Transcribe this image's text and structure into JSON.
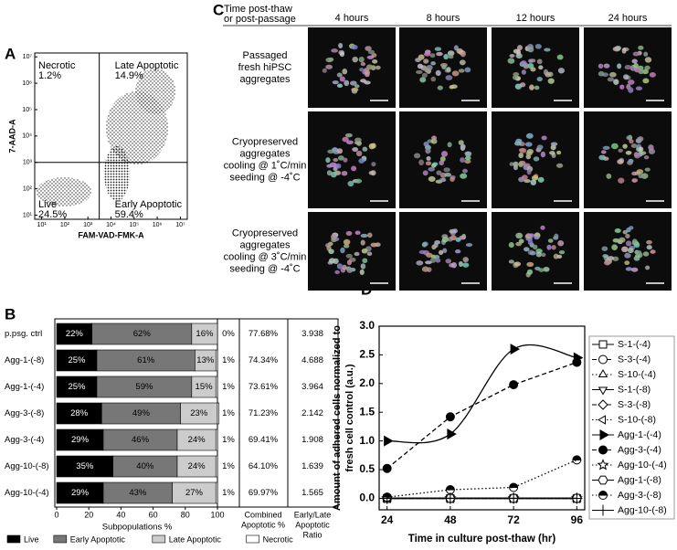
{
  "panel_labels": [
    "A",
    "B",
    "C",
    "D"
  ],
  "chart_data": [
    {
      "type": "flow-cytometry",
      "xlabel": "FAM-VAD-FMK-A",
      "ylabel": "7-AAD-A",
      "log_scale": true,
      "xlim": [
        5,
        20000000
      ],
      "ylim": [
        7,
        14000000
      ],
      "xticks": [
        {
          "value": 10,
          "label": "10¹"
        },
        {
          "value": 100,
          "label": "10²"
        },
        {
          "value": 1000,
          "label": "10³"
        },
        {
          "value": 10000,
          "label": "10⁴"
        },
        {
          "value": 100000,
          "label": "10⁵"
        },
        {
          "value": 1000000,
          "label": "10⁶"
        },
        {
          "value": 10000000,
          "label": "10⁷"
        }
      ],
      "yticks": [
        {
          "value": 10,
          "label": "10¹"
        },
        {
          "value": 100,
          "label": "10²"
        },
        {
          "value": 1000,
          "label": "10³"
        },
        {
          "value": 10000,
          "label": "10⁴"
        },
        {
          "value": 100000,
          "label": "10⁵"
        },
        {
          "value": 1000000,
          "label": "10⁶"
        },
        {
          "value": 10000000,
          "label": "10⁷"
        }
      ],
      "gates": {
        "x": 3100,
        "y": 1000
      },
      "quadrants": [
        {
          "name": "Necrotic",
          "value": 1.2,
          "value_label": "1.2%"
        },
        {
          "name": "Late Apoptotic",
          "value": 14.9,
          "value_label": "14.9%"
        },
        {
          "name": "Live",
          "value": 24.5,
          "value_label": "24.5%"
        },
        {
          "name": "Early Apoptotic",
          "value": 59.4,
          "value_label": "59.4%"
        }
      ]
    },
    {
      "type": "stacked-barh",
      "xlabel": "Subpopulations %",
      "categories": [
        "p.psg. ctrl",
        "Agg-1-(-8)",
        "Agg-1-(-4)",
        "Agg-3-(-8)",
        "Agg-3-(-4)",
        "Agg-10-(-8)",
        "Agg-10-(-4)"
      ],
      "xlim": [
        0,
        100
      ],
      "xticks": [
        0,
        20,
        40,
        60,
        80,
        100
      ],
      "series": [
        {
          "name": "Live",
          "color": "#000000",
          "values": [
            22,
            25,
            25,
            28,
            29,
            35,
            29
          ],
          "value_labels": [
            "22%",
            "25%",
            "25%",
            "28%",
            "29%",
            "35%",
            "29%"
          ]
        },
        {
          "name": "Early Apoptotic",
          "color": "#777777",
          "values": [
            62,
            61,
            59,
            49,
            46,
            40,
            43
          ],
          "value_labels": [
            "62%",
            "61%",
            "59%",
            "49%",
            "46%",
            "40%",
            "43%"
          ]
        },
        {
          "name": "Late Apoptotic",
          "color": "#cccccc",
          "values": [
            16,
            13,
            15,
            23,
            24,
            24,
            27
          ],
          "value_labels": [
            "16%",
            "13%",
            "15%",
            "23%",
            "24%",
            "24%",
            "27%"
          ]
        },
        {
          "name": "Necrotic",
          "color": "#ffffff",
          "values": [
            0,
            1,
            1,
            1,
            1,
            1,
            1
          ],
          "value_labels": [
            "0%",
            "1%",
            "1%",
            "1%",
            "1%",
            "1%",
            "1%"
          ]
        }
      ],
      "table": [
        {
          "header": [
            "Combined",
            "Apoptotic %"
          ],
          "values": [
            77.68,
            74.34,
            73.61,
            71.23,
            69.41,
            64.1,
            69.97
          ],
          "value_labels": [
            "77.68%",
            "74.34%",
            "73.61%",
            "71.23%",
            "69.41%",
            "64.10%",
            "69.97%"
          ]
        },
        {
          "header": [
            "Early/Late",
            "Apoptotic",
            "Ratio"
          ],
          "values": [
            3.938,
            4.688,
            3.964,
            2.142,
            1.908,
            1.639,
            1.565
          ]
        }
      ]
    },
    {
      "type": "line",
      "xlabel": "Time in culture post-thaw (hr)",
      "ylabel": [
        "Amount of adhered cells normalized to",
        "fresh cell control (a.u.)"
      ],
      "x": [
        24,
        48,
        72,
        96
      ],
      "xlim": [
        21,
        99
      ],
      "xticks": [
        24,
        48,
        72,
        96
      ],
      "ylim": [
        -0.2,
        3.0
      ],
      "yticks": [
        {
          "value": 0,
          "label": "0.0"
        },
        {
          "value": 0.5,
          "label": "0.5"
        },
        {
          "value": 1,
          "label": "1.0"
        },
        {
          "value": 1.5,
          "label": "1.5"
        },
        {
          "value": 2,
          "label": "2.0"
        },
        {
          "value": 2.5,
          "label": "2.5"
        },
        {
          "value": 3,
          "label": "3.0"
        }
      ],
      "series": [
        {
          "name": "S-1-(-4)",
          "color": "#000000",
          "marker": "square-open",
          "line": "solid",
          "values": [
            0,
            0,
            0,
            0
          ]
        },
        {
          "name": "S-3-(-4)",
          "color": "#000000",
          "marker": "circle-open",
          "line": "dash",
          "values": [
            0,
            0,
            0,
            0
          ]
        },
        {
          "name": "S-10-(-4)",
          "color": "#000000",
          "marker": "triangle-open",
          "line": "dot",
          "values": [
            0,
            0,
            0,
            0
          ]
        },
        {
          "name": "S-1-(-8)",
          "color": "#000000",
          "marker": "triangle-down-open",
          "line": "solid",
          "values": [
            0,
            0,
            0,
            0
          ]
        },
        {
          "name": "S-3-(-8)",
          "color": "#000000",
          "marker": "diamond-open",
          "line": "dash",
          "values": [
            0,
            0,
            0,
            0
          ]
        },
        {
          "name": "S-10-(-8)",
          "color": "#000000",
          "marker": "triangle-left-open",
          "line": "dot",
          "values": [
            0,
            0,
            0,
            0
          ]
        },
        {
          "name": "Agg-1-(-4)",
          "color": "#000000",
          "marker": "triangle-right",
          "line": "smooth",
          "values": [
            1.0,
            1.12,
            2.6,
            2.45
          ]
        },
        {
          "name": "Agg-3-(-4)",
          "color": "#000000",
          "marker": "circle",
          "line": "dash",
          "values": [
            0.52,
            1.42,
            1.98,
            2.37
          ]
        },
        {
          "name": "Agg-10-(-4)",
          "color": "#000000",
          "marker": "star-open",
          "line": "dot",
          "values": [
            0,
            0,
            0,
            0
          ]
        },
        {
          "name": "Agg-1-(-8)",
          "color": "#000000",
          "marker": "hexagon-open",
          "line": "solid",
          "values": [
            0,
            0,
            0,
            0
          ]
        },
        {
          "name": "Agg-3-(-8)",
          "color": "#000000",
          "marker": "circle-half",
          "line": "dot",
          "values": [
            0.02,
            0.15,
            0.19,
            0.67
          ]
        },
        {
          "name": "Agg-10-(-8)",
          "color": "#000000",
          "marker": "plus",
          "line": "solid",
          "values": [
            0,
            0,
            0,
            0
          ]
        }
      ]
    }
  ],
  "microscopy": {
    "header": [
      "Time post-thaw",
      "or post-passage"
    ],
    "columns": [
      "4 hours",
      "8 hours",
      "12 hours",
      "24 hours"
    ],
    "rows": [
      [
        "Passaged",
        "fresh hiPSC",
        "aggregates"
      ],
      [
        "Cryopreserved",
        "aggregates",
        "cooling @ 1˚C/min",
        "seeding @ -4˚C"
      ],
      [
        "Cryopreserved",
        "aggregates",
        "cooling @ 3˚C/min",
        "seeding @ -4˚C"
      ]
    ]
  }
}
